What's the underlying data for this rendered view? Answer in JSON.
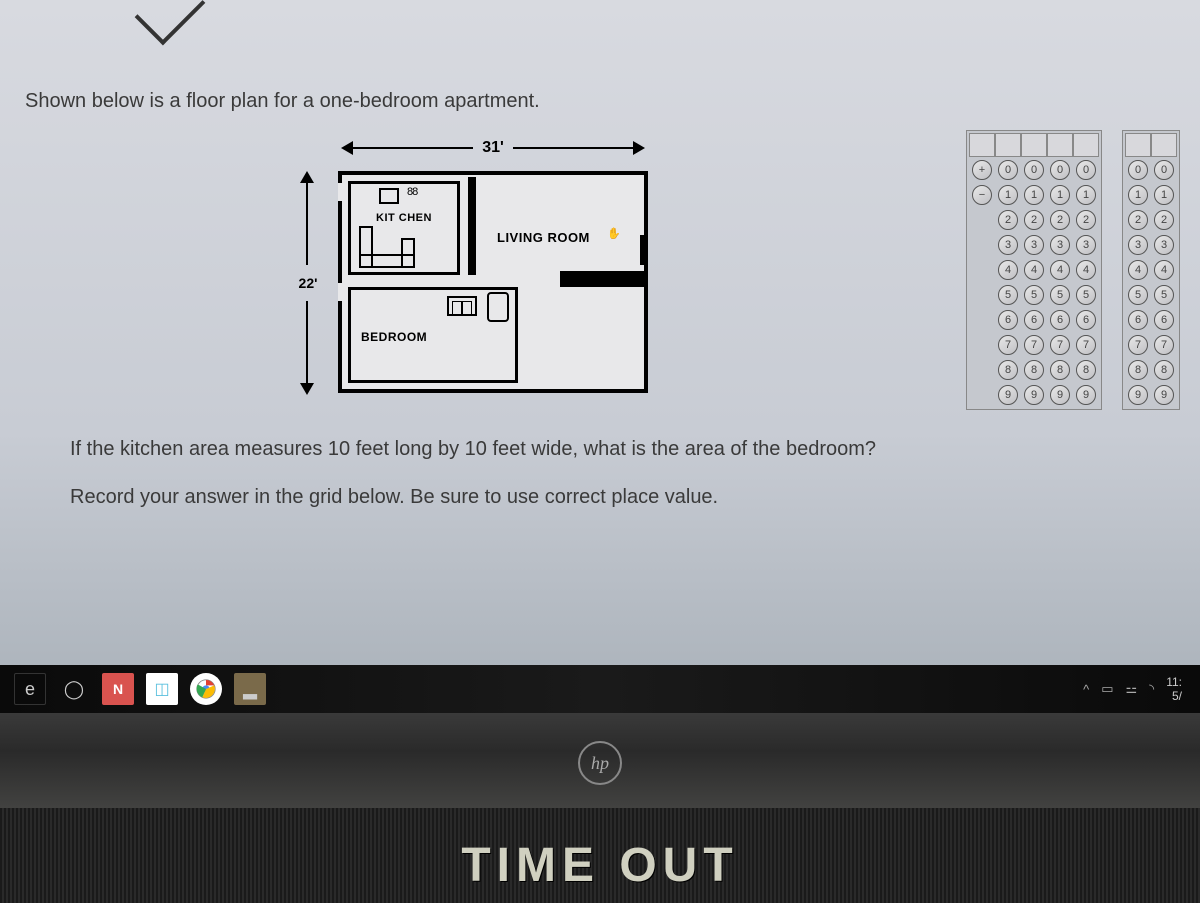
{
  "question": {
    "intro": "Shown below is a floor plan for a one-bedroom apartment.",
    "prompt1": "If the kitchen area measures 10 feet long by 10 feet wide, what is the area of the bedroom?",
    "prompt2": "Record your answer in the grid below. Be sure to use correct place value."
  },
  "floorplan": {
    "width_label": "31'",
    "height_label": "22'",
    "kitchen_label": "KIT CHEN",
    "living_label": "LIVING ROOM",
    "bedroom_label": "BEDROOM",
    "burners": "88"
  },
  "bubble_grid": {
    "main_columns": 5,
    "secondary_columns": 2,
    "digits": [
      "0",
      "1",
      "2",
      "3",
      "4",
      "5",
      "6",
      "7",
      "8",
      "9"
    ],
    "border_color": "#888",
    "circle_border": "#555",
    "bg": "#c5c8ce"
  },
  "taskbar": {
    "tray_caret": "^",
    "time": "11:",
    "date": "5/",
    "icons": {
      "edge": "e",
      "n": "N",
      "notes": "◫",
      "chrome": "◉",
      "file": "▂"
    }
  },
  "laptop": {
    "logo": "hp",
    "overlay": "TIME OUT"
  },
  "colors": {
    "screen_bg_top": "#d8dae0",
    "screen_bg_bottom": "#a8b0b8",
    "text": "#3a3a3a",
    "plan_line": "#000000",
    "taskbar_bg": "#0a0a0a"
  }
}
